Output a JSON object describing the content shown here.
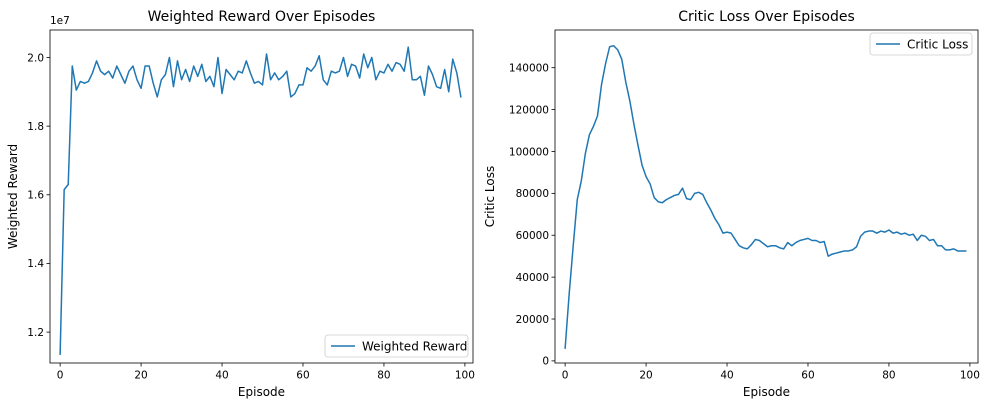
{
  "chart_data": [
    {
      "type": "line",
      "title": "Weighted Reward Over Episodes",
      "xlabel": "Episode",
      "ylabel": "Weighted Reward",
      "offset_label": "1e7",
      "xlim": [
        -2.5,
        102
      ],
      "ylim": [
        1.11,
        2.08
      ],
      "xticks": [
        0,
        20,
        40,
        60,
        80,
        100
      ],
      "yticks": [
        1.2,
        1.4,
        1.6,
        1.8,
        2.0
      ],
      "ytick_labels": [
        "1.2",
        "1.4",
        "1.6",
        "1.8",
        "2.0"
      ],
      "legend_position": "lower-right",
      "series": [
        {
          "name": "Weighted Reward",
          "color": "#1f77b4",
          "x": [
            0,
            1,
            2,
            3,
            4,
            5,
            6,
            7,
            8,
            9,
            10,
            11,
            12,
            13,
            14,
            15,
            16,
            17,
            18,
            19,
            20,
            21,
            22,
            23,
            24,
            25,
            26,
            27,
            28,
            29,
            30,
            31,
            32,
            33,
            34,
            35,
            36,
            37,
            38,
            39,
            40,
            41,
            42,
            43,
            44,
            45,
            46,
            47,
            48,
            49,
            50,
            51,
            52,
            53,
            54,
            55,
            56,
            57,
            58,
            59,
            60,
            61,
            62,
            63,
            64,
            65,
            66,
            67,
            68,
            69,
            70,
            71,
            72,
            73,
            74,
            75,
            76,
            77,
            78,
            79,
            80,
            81,
            82,
            83,
            84,
            85,
            86,
            87,
            88,
            89,
            90,
            91,
            92,
            93,
            94,
            95,
            96,
            97,
            98,
            99
          ],
          "values": [
            1.135,
            1.615,
            1.63,
            1.975,
            1.905,
            1.93,
            1.925,
            1.93,
            1.955,
            1.99,
            1.96,
            1.95,
            1.96,
            1.94,
            1.975,
            1.95,
            1.925,
            1.96,
            1.975,
            1.935,
            1.91,
            1.975,
            1.975,
            1.925,
            1.885,
            1.935,
            1.95,
            2.0,
            1.915,
            1.99,
            1.935,
            1.965,
            1.93,
            1.975,
            1.945,
            1.98,
            1.93,
            1.945,
            1.915,
            2.0,
            1.895,
            1.965,
            1.95,
            1.935,
            1.96,
            1.955,
            1.99,
            1.955,
            1.925,
            1.93,
            1.92,
            2.01,
            1.935,
            1.955,
            1.935,
            1.945,
            1.96,
            1.885,
            1.895,
            1.92,
            1.92,
            1.97,
            1.96,
            1.975,
            2.005,
            1.935,
            1.92,
            1.96,
            1.955,
            1.96,
            2.0,
            1.945,
            1.98,
            1.975,
            1.94,
            2.01,
            1.97,
            2.0,
            1.935,
            1.96,
            1.955,
            1.98,
            1.96,
            1.985,
            1.98,
            1.96,
            2.03,
            1.935,
            1.935,
            1.945,
            1.89,
            1.975,
            1.95,
            1.915,
            1.91,
            1.965,
            1.9,
            1.995,
            1.955,
            1.885
          ]
        }
      ]
    },
    {
      "type": "line",
      "title": "Critic Loss Over Episodes",
      "xlabel": "Episode",
      "ylabel": "Critic Loss",
      "xlim": [
        -2.5,
        102
      ],
      "ylim": [
        -1000,
        158000
      ],
      "xticks": [
        0,
        20,
        40,
        60,
        80,
        100
      ],
      "yticks": [
        0,
        20000,
        40000,
        60000,
        80000,
        100000,
        120000,
        140000
      ],
      "legend_position": "upper-right",
      "series": [
        {
          "name": "Critic Loss",
          "color": "#1f77b4",
          "x": [
            0,
            1,
            2,
            3,
            4,
            5,
            6,
            7,
            8,
            9,
            10,
            11,
            12,
            13,
            14,
            15,
            16,
            17,
            18,
            19,
            20,
            21,
            22,
            23,
            24,
            25,
            26,
            27,
            28,
            29,
            30,
            31,
            32,
            33,
            34,
            35,
            36,
            37,
            38,
            39,
            40,
            41,
            42,
            43,
            44,
            45,
            46,
            47,
            48,
            49,
            50,
            51,
            52,
            53,
            54,
            55,
            56,
            57,
            58,
            59,
            60,
            61,
            62,
            63,
            64,
            65,
            66,
            67,
            68,
            69,
            70,
            71,
            72,
            73,
            74,
            75,
            76,
            77,
            78,
            79,
            80,
            81,
            82,
            83,
            84,
            85,
            86,
            87,
            88,
            89,
            90,
            91,
            92,
            93,
            94,
            95,
            96,
            97,
            98,
            99
          ],
          "values": [
            6000,
            32000,
            55000,
            77000,
            86000,
            99000,
            108000,
            112000,
            117000,
            132000,
            142000,
            150000,
            150500,
            148500,
            144000,
            133000,
            124000,
            113000,
            103000,
            93500,
            88000,
            84500,
            78000,
            76000,
            75500,
            77000,
            78000,
            79000,
            79500,
            82500,
            77500,
            77000,
            80000,
            80500,
            79500,
            75500,
            72000,
            68000,
            65000,
            61000,
            61500,
            61000,
            58000,
            55000,
            54000,
            53500,
            55500,
            58000,
            57500,
            56000,
            54500,
            55000,
            55000,
            54000,
            53500,
            56500,
            55000,
            56500,
            57500,
            58000,
            58500,
            57500,
            57500,
            56500,
            57000,
            50000,
            51000,
            51500,
            52000,
            52500,
            52500,
            53000,
            54500,
            59500,
            61500,
            62000,
            62000,
            61000,
            62000,
            61500,
            62500,
            61000,
            61500,
            60500,
            61000,
            60000,
            60500,
            57500,
            60000,
            59500,
            57500,
            58000,
            55000,
            55000,
            53000,
            53000,
            53500,
            52500,
            52500,
            52500
          ]
        }
      ]
    }
  ]
}
